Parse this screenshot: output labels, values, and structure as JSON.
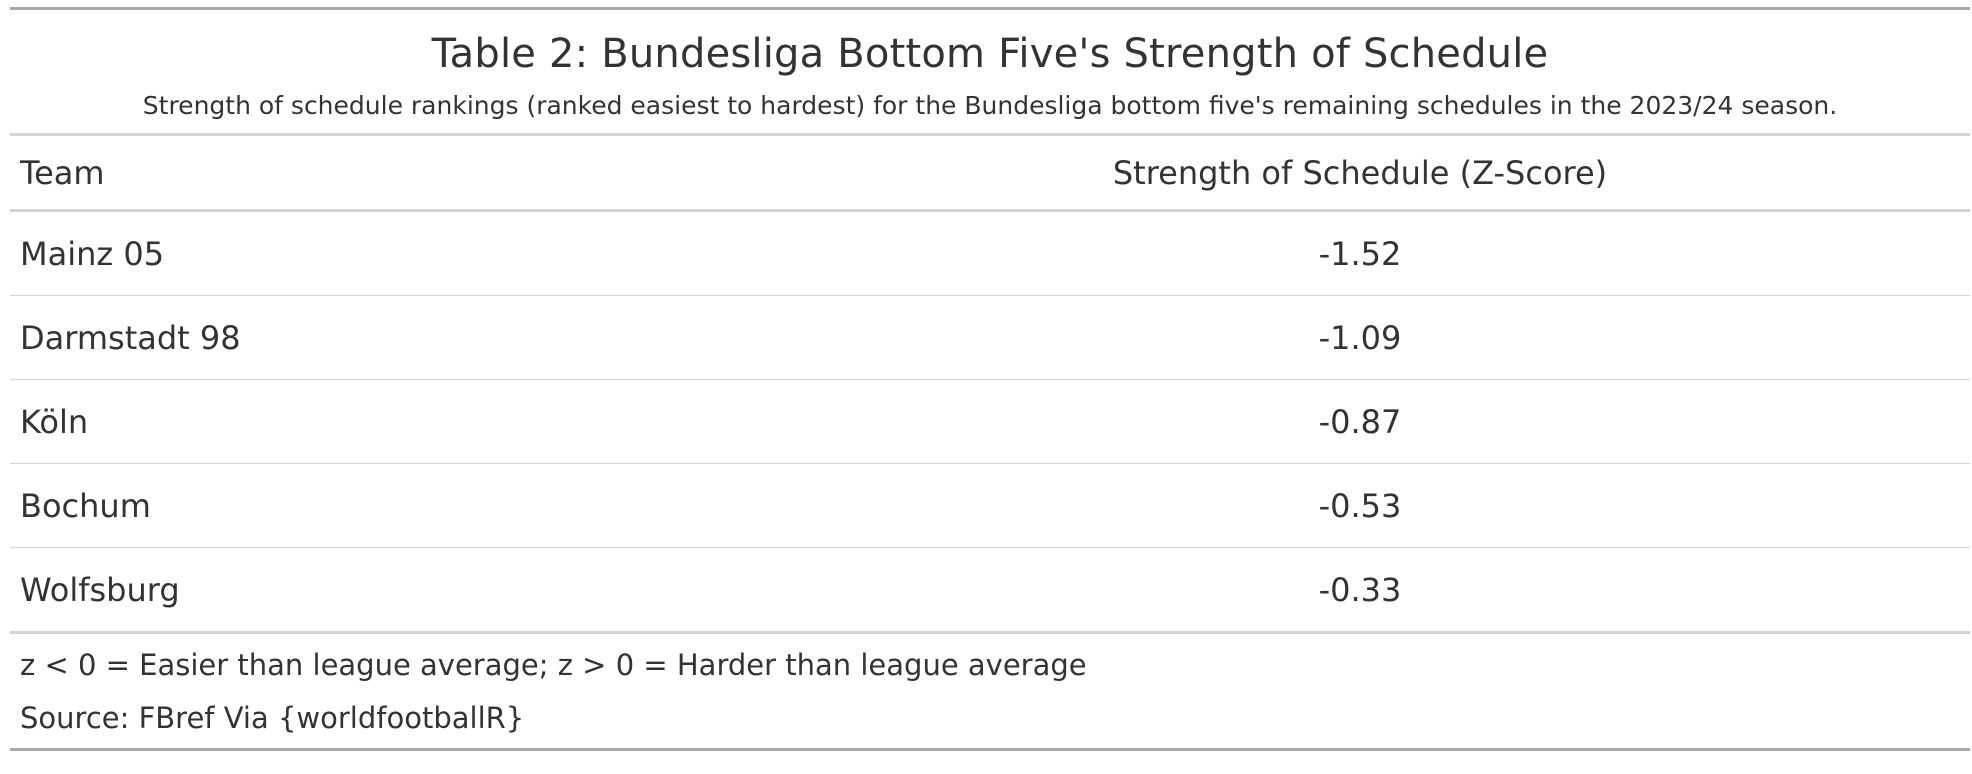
{
  "table": {
    "title": "Table 2: Bundesliga Bottom Five's Strength of Schedule",
    "subtitle": "Strength of schedule rankings (ranked easiest to hardest) for the Bundesliga bottom five's remaining schedules in the 2023/24 season.",
    "columns": [
      "Team",
      "Strength of Schedule (Z-Score)"
    ],
    "rows": [
      {
        "team": "Mainz 05",
        "sos": "-1.52"
      },
      {
        "team": "Darmstadt 98",
        "sos": "-1.09"
      },
      {
        "team": "Köln",
        "sos": "-0.87"
      },
      {
        "team": "Bochum",
        "sos": "-0.53"
      },
      {
        "team": "Wolfsburg",
        "sos": "-0.33"
      }
    ],
    "footnote": "z < 0 = Easier than league average; z > 0 = Harder than league average",
    "source": "Source: FBref Via {worldfootballR}"
  },
  "colors": {
    "text": "#333333",
    "outer_rule": "#a8a8a8",
    "inner_rule": "#d3d3d3",
    "background": "#ffffff"
  }
}
